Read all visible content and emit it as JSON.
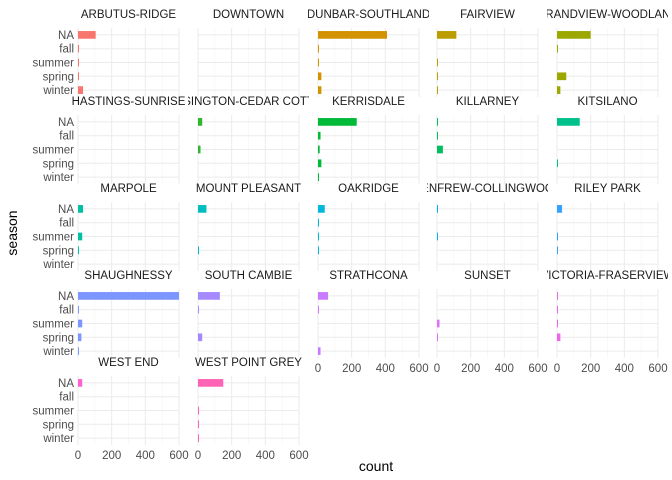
{
  "chart_data": {
    "type": "bar",
    "orientation": "horizontal",
    "layout": "facet_wrap",
    "xlabel": "count",
    "ylabel": "season",
    "categories": [
      "NA",
      "fall",
      "summer",
      "spring",
      "winter"
    ],
    "xlim": [
      0,
      600
    ],
    "xticks": [
      "0",
      "200",
      "400",
      "600"
    ],
    "grid": true,
    "legend": "none",
    "panels": [
      {
        "label": "ARBUTUS-RIDGE",
        "color": "#F8766D",
        "values": [
          105,
          4,
          4,
          4,
          30
        ]
      },
      {
        "label": "DOWNTOWN",
        "color": "#E7851E",
        "values": [
          0,
          0,
          0,
          0,
          0
        ],
        "values_partial": [
          20,
          0,
          0,
          0,
          0
        ]
      },
      {
        "label": "DUNBAR-SOUTHLAND",
        "color": "#D39200",
        "values": [
          410,
          5,
          3,
          20,
          20
        ]
      },
      {
        "label": "FAIRVIEW",
        "color": "#BB9D00",
        "values": [
          115,
          0,
          3,
          3,
          3
        ]
      },
      {
        "label": "GRANDVIEW-WOODLAND",
        "color": "#9CA700",
        "values": [
          200,
          3,
          0,
          55,
          20
        ]
      },
      {
        "label": "HASTINGS-SUNRISE",
        "color": "#74B000",
        "values": [
          0,
          0,
          0,
          0,
          0
        ]
      },
      {
        "label": "KENSINGTON-CEDAR COTTAGE",
        "color": "#2EB72E",
        "values": [
          25,
          0,
          15,
          0,
          0
        ]
      },
      {
        "label": "KERRISDALE",
        "color": "#00BA38",
        "values": [
          230,
          15,
          10,
          20,
          5
        ]
      },
      {
        "label": "KILLARNEY",
        "color": "#00BD60",
        "values": [
          5,
          5,
          35,
          0,
          0
        ]
      },
      {
        "label": "KITSILANO",
        "color": "#00C08B",
        "values": [
          135,
          0,
          0,
          5,
          0
        ]
      },
      {
        "label": "MARPOLE",
        "color": "#00BFA4",
        "values": [
          30,
          0,
          25,
          5,
          0
        ]
      },
      {
        "label": "MOUNT PLEASANT",
        "color": "#00BDC0",
        "values": [
          50,
          0,
          0,
          5,
          0
        ]
      },
      {
        "label": "OAKRIDGE",
        "color": "#00B8D9",
        "values": [
          40,
          5,
          5,
          5,
          0
        ]
      },
      {
        "label": "RENFREW-COLLINGWOOD",
        "color": "#00B0F0",
        "values": [
          5,
          0,
          5,
          0,
          0
        ]
      },
      {
        "label": "RILEY PARK",
        "color": "#35A2FF",
        "values": [
          30,
          0,
          5,
          5,
          0
        ]
      },
      {
        "label": "SHAUGHNESSY",
        "color": "#7C96FF",
        "values": [
          600,
          5,
          25,
          20,
          5
        ]
      },
      {
        "label": "SOUTH CAMBIE",
        "color": "#A58AFF",
        "values": [
          130,
          5,
          0,
          25,
          0
        ]
      },
      {
        "label": "STRATHCONA",
        "color": "#C77CFF",
        "values": [
          60,
          5,
          0,
          0,
          15
        ]
      },
      {
        "label": "SUNSET",
        "color": "#DF70F8",
        "values": [
          0,
          0,
          15,
          5,
          0
        ]
      },
      {
        "label": "VICTORIA-FRASERVIEW",
        "color": "#F066E9",
        "values": [
          5,
          5,
          5,
          20,
          0
        ]
      },
      {
        "label": "WEST END",
        "color": "#FC62D0",
        "values": [
          25,
          0,
          0,
          0,
          0
        ]
      },
      {
        "label": "WEST POINT GREY",
        "color": "#FF63B6",
        "values": [
          150,
          0,
          5,
          5,
          5
        ]
      }
    ]
  }
}
